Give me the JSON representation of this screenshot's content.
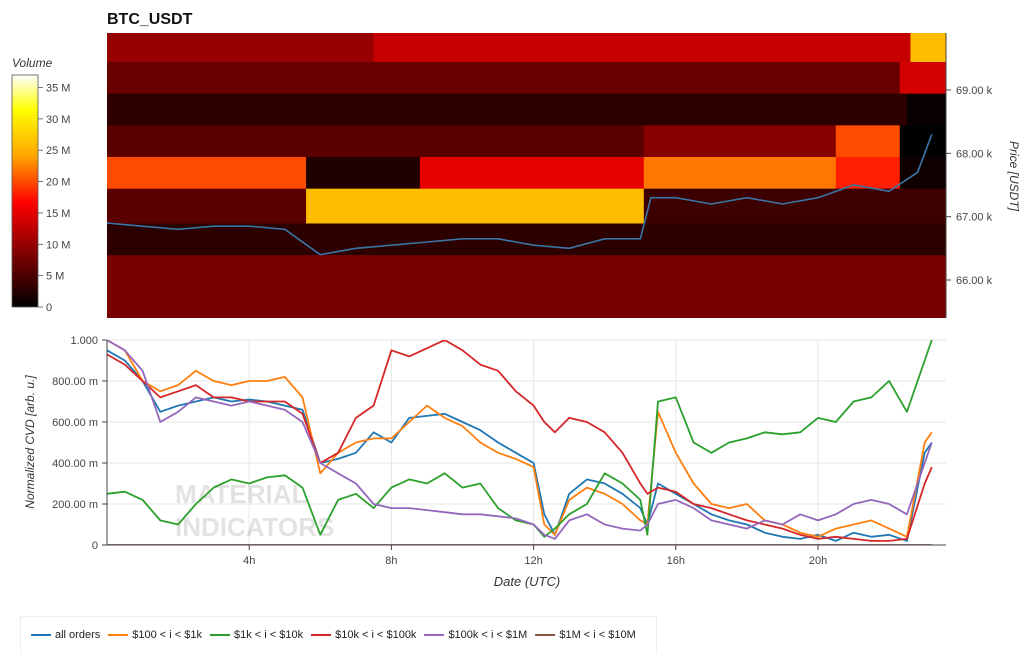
{
  "chart_data": [
    {
      "type": "heatmap",
      "title": "BTC_USDT",
      "ylabel": "Price [USDT]",
      "ylim": [
        65400,
        69900
      ],
      "y_ticks": [
        66000,
        67000,
        68000,
        69000
      ],
      "y_tick_labels": [
        "66.00 k",
        "67.00 k",
        "68.00 k",
        "69.00 k"
      ],
      "colorbar": {
        "title": "Volume",
        "range": [
          0,
          37000000
        ],
        "ticks": [
          0,
          5000000,
          10000000,
          15000000,
          20000000,
          25000000,
          30000000,
          35000000
        ],
        "tick_labels": [
          "0",
          "5 M",
          "10 M",
          "15 M",
          "20 M",
          "25 M",
          "30 M",
          "35 M"
        ],
        "colors": [
          "#000000",
          "#8b0000",
          "#ff0000",
          "#ffa500",
          "#ffff00",
          "#ffffff"
        ]
      },
      "price_line_color": "#3a75a5",
      "price_series": {
        "name": "price",
        "x_hours": [
          0,
          1,
          2,
          3,
          4,
          5,
          6,
          7,
          8,
          9,
          10,
          11,
          12,
          13,
          14,
          15,
          15.3,
          16,
          17,
          18,
          19,
          20,
          21,
          22,
          22.8,
          23.2
        ],
        "values": [
          66900,
          66850,
          66800,
          66850,
          66850,
          66800,
          66400,
          66500,
          66550,
          66600,
          66650,
          66650,
          66550,
          66500,
          66650,
          66650,
          67300,
          67300,
          67200,
          67300,
          67200,
          67300,
          67500,
          67400,
          67700,
          68300
        ]
      },
      "bands": [
        {
          "from": 65400,
          "to": 66400,
          "levels": [
            {
              "x_hours": 0,
              "volume": 8000000
            }
          ]
        },
        {
          "from": 66400,
          "to": 66900,
          "levels": [
            {
              "x_hours": 0,
              "volume": 3000000
            }
          ]
        },
        {
          "from": 66900,
          "to": 67450,
          "levels": [
            {
              "x_hours": 0,
              "volume": 6000000
            },
            {
              "x_hours": 5.6,
              "volume": 26000000
            },
            {
              "x_hours": 15.1,
              "volume": 4000000
            }
          ]
        },
        {
          "from": 67450,
          "to": 67950,
          "levels": [
            {
              "x_hours": 0,
              "volume": 20000000
            },
            {
              "x_hours": 5.6,
              "volume": 2000000
            },
            {
              "x_hours": 8.8,
              "volume": 15000000
            },
            {
              "x_hours": 15.1,
              "volume": 22000000
            },
            {
              "x_hours": 20.5,
              "volume": 18000000
            },
            {
              "x_hours": 22.3,
              "volume": 1000000
            }
          ]
        },
        {
          "from": 67950,
          "to": 68450,
          "levels": [
            {
              "x_hours": 0,
              "volume": 6000000
            },
            {
              "x_hours": 15.1,
              "volume": 9000000
            },
            {
              "x_hours": 20.5,
              "volume": 20000000
            },
            {
              "x_hours": 22.3,
              "volume": 0
            }
          ]
        },
        {
          "from": 68450,
          "to": 68950,
          "levels": [
            {
              "x_hours": 0,
              "volume": 3000000
            },
            {
              "x_hours": 22.5,
              "volume": 500000
            }
          ]
        },
        {
          "from": 68950,
          "to": 69450,
          "levels": [
            {
              "x_hours": 0,
              "volume": 7000000
            },
            {
              "x_hours": 22.3,
              "volume": 14000000
            }
          ]
        },
        {
          "from": 69450,
          "to": 69900,
          "levels": [
            {
              "x_hours": 0,
              "volume": 10000000
            },
            {
              "x_hours": 7.5,
              "volume": 13000000
            },
            {
              "x_hours": 22.6,
              "volume": 26000000
            }
          ]
        }
      ]
    },
    {
      "type": "line",
      "xlabel": "Date (UTC)",
      "ylabel": "Normalized CVD [arb. u.]",
      "xlim": [
        0,
        23.6
      ],
      "ylim": [
        0,
        1
      ],
      "x_ticks": [
        4,
        8,
        12,
        16,
        20
      ],
      "x_tick_labels": [
        "4h",
        "8h",
        "12h",
        "16h",
        "20h"
      ],
      "y_ticks": [
        0,
        0.2,
        0.4,
        0.6,
        0.8,
        1.0
      ],
      "y_tick_labels": [
        "0",
        "200.00 m",
        "400.00 m",
        "600.00 m",
        "800.00 m",
        "1.000"
      ],
      "grid": true,
      "legend_position": "bottom",
      "watermark": [
        "MATERIAL",
        "INDICATORS"
      ],
      "series": [
        {
          "name": "all orders",
          "color": "#1f77b4",
          "x": [
            0,
            0.5,
            1,
            1.5,
            2,
            2.5,
            3,
            3.5,
            4,
            4.5,
            5,
            5.5,
            6,
            6.5,
            7,
            7.5,
            8,
            8.5,
            9,
            9.5,
            10,
            10.5,
            11,
            11.5,
            12,
            12.3,
            12.6,
            13,
            13.5,
            14,
            14.5,
            15,
            15.2,
            15.5,
            16,
            16.5,
            17,
            17.5,
            18,
            18.5,
            19,
            19.5,
            20,
            20.5,
            21,
            21.5,
            22,
            22.5,
            23,
            23.2
          ],
          "values": [
            0.95,
            0.9,
            0.8,
            0.65,
            0.68,
            0.7,
            0.72,
            0.7,
            0.71,
            0.7,
            0.68,
            0.66,
            0.4,
            0.42,
            0.45,
            0.55,
            0.5,
            0.62,
            0.63,
            0.64,
            0.6,
            0.56,
            0.5,
            0.45,
            0.4,
            0.15,
            0.05,
            0.25,
            0.32,
            0.3,
            0.25,
            0.18,
            0.1,
            0.3,
            0.25,
            0.2,
            0.15,
            0.12,
            0.1,
            0.06,
            0.04,
            0.03,
            0.05,
            0.02,
            0.06,
            0.04,
            0.05,
            0.02,
            0.45,
            0.5
          ]
        },
        {
          "name": "$100 < i < $1k",
          "color": "#ff7f0e",
          "x": [
            0,
            0.5,
            1,
            1.5,
            2,
            2.5,
            3,
            3.5,
            4,
            4.5,
            5,
            5.5,
            6,
            6.5,
            7,
            7.5,
            8,
            8.5,
            9,
            9.5,
            10,
            10.5,
            11,
            11.5,
            12,
            12.3,
            12.6,
            13,
            13.5,
            14,
            14.5,
            15,
            15.2,
            15.5,
            16,
            16.5,
            17,
            17.5,
            18,
            18.5,
            19,
            19.5,
            20,
            20.5,
            21,
            21.5,
            22,
            22.5,
            23,
            23.2
          ],
          "values": [
            1.0,
            0.95,
            0.8,
            0.75,
            0.78,
            0.85,
            0.8,
            0.78,
            0.8,
            0.8,
            0.82,
            0.72,
            0.35,
            0.45,
            0.5,
            0.52,
            0.52,
            0.6,
            0.68,
            0.62,
            0.58,
            0.5,
            0.45,
            0.42,
            0.38,
            0.1,
            0.05,
            0.22,
            0.28,
            0.25,
            0.2,
            0.12,
            0.1,
            0.65,
            0.45,
            0.3,
            0.2,
            0.18,
            0.2,
            0.12,
            0.1,
            0.06,
            0.04,
            0.08,
            0.1,
            0.12,
            0.08,
            0.04,
            0.5,
            0.55
          ]
        },
        {
          "name": "$1k < i < $10k",
          "color": "#2ca02c",
          "x": [
            0,
            0.5,
            1,
            1.5,
            2,
            2.5,
            3,
            3.5,
            4,
            4.5,
            5,
            5.5,
            6,
            6.5,
            7,
            7.5,
            8,
            8.5,
            9,
            9.5,
            10,
            10.5,
            11,
            11.5,
            12,
            12.3,
            12.6,
            13,
            13.5,
            14,
            14.5,
            15,
            15.2,
            15.5,
            16,
            16.5,
            17,
            17.5,
            18,
            18.5,
            19,
            19.5,
            20,
            20.5,
            21,
            21.5,
            22,
            22.5,
            23,
            23.2
          ],
          "values": [
            0.25,
            0.26,
            0.22,
            0.12,
            0.1,
            0.2,
            0.28,
            0.32,
            0.3,
            0.33,
            0.34,
            0.28,
            0.05,
            0.22,
            0.25,
            0.18,
            0.28,
            0.32,
            0.3,
            0.35,
            0.28,
            0.3,
            0.18,
            0.12,
            0.1,
            0.04,
            0.08,
            0.15,
            0.2,
            0.35,
            0.3,
            0.22,
            0.05,
            0.7,
            0.72,
            0.5,
            0.45,
            0.5,
            0.52,
            0.55,
            0.54,
            0.55,
            0.62,
            0.6,
            0.7,
            0.72,
            0.8,
            0.65,
            0.9,
            1.0
          ]
        },
        {
          "name": "$10k < i < $100k",
          "color": "#d62728",
          "x": [
            0,
            0.5,
            1,
            1.5,
            2,
            2.5,
            3,
            3.5,
            4,
            4.5,
            5,
            5.5,
            6,
            6.5,
            7,
            7.5,
            8,
            8.5,
            9,
            9.5,
            10,
            10.5,
            11,
            11.5,
            12,
            12.3,
            12.6,
            13,
            13.5,
            14,
            14.5,
            15,
            15.2,
            15.5,
            16,
            16.5,
            17,
            17.5,
            18,
            18.5,
            19,
            19.5,
            20,
            20.5,
            21,
            21.5,
            22,
            22.5,
            23,
            23.2
          ],
          "values": [
            0.93,
            0.88,
            0.8,
            0.72,
            0.75,
            0.78,
            0.72,
            0.72,
            0.7,
            0.7,
            0.7,
            0.64,
            0.4,
            0.45,
            0.62,
            0.68,
            0.95,
            0.92,
            0.96,
            1.0,
            0.95,
            0.88,
            0.85,
            0.75,
            0.68,
            0.6,
            0.55,
            0.62,
            0.6,
            0.55,
            0.45,
            0.3,
            0.25,
            0.28,
            0.26,
            0.2,
            0.18,
            0.15,
            0.12,
            0.1,
            0.08,
            0.05,
            0.03,
            0.04,
            0.03,
            0.02,
            0.02,
            0.03,
            0.3,
            0.38
          ]
        },
        {
          "name": "$100k < i < $1M",
          "color": "#9467bd",
          "x": [
            0,
            0.5,
            1,
            1.5,
            2,
            2.5,
            3,
            3.5,
            4,
            4.5,
            5,
            5.5,
            6,
            6.5,
            7,
            7.5,
            8,
            8.5,
            9,
            9.5,
            10,
            10.5,
            11,
            11.5,
            12,
            12.3,
            12.6,
            13,
            13.5,
            14,
            14.5,
            15,
            15.2,
            15.5,
            16,
            16.5,
            17,
            17.5,
            18,
            18.5,
            19,
            19.5,
            20,
            20.5,
            21,
            21.5,
            22,
            22.5,
            23,
            23.2
          ],
          "values": [
            1.0,
            0.95,
            0.85,
            0.6,
            0.65,
            0.72,
            0.7,
            0.68,
            0.7,
            0.68,
            0.66,
            0.6,
            0.4,
            0.35,
            0.3,
            0.2,
            0.18,
            0.18,
            0.17,
            0.16,
            0.15,
            0.15,
            0.14,
            0.13,
            0.1,
            0.05,
            0.03,
            0.12,
            0.15,
            0.1,
            0.08,
            0.07,
            0.1,
            0.2,
            0.22,
            0.18,
            0.12,
            0.1,
            0.08,
            0.12,
            0.1,
            0.15,
            0.12,
            0.15,
            0.2,
            0.22,
            0.2,
            0.15,
            0.4,
            0.5
          ]
        },
        {
          "name": "$1M < i < $10M",
          "color": "#8c564b",
          "x": [
            0,
            23.2
          ],
          "values": [
            0,
            0
          ]
        }
      ]
    }
  ]
}
